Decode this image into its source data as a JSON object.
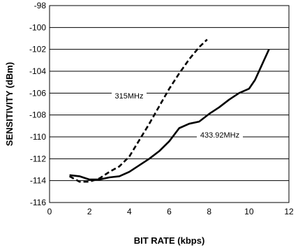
{
  "chart_data": {
    "type": "line",
    "xlabel": "BIT RATE (kbps)",
    "ylabel": "SENSITIVITY (dBm)",
    "xlim": [
      0,
      12
    ],
    "ylim": [
      -116,
      -98
    ],
    "x_ticks": [
      "0",
      "2",
      "4",
      "6",
      "8",
      "10",
      "12"
    ],
    "y_ticks": [
      "-116",
      "-114",
      "-112",
      "-110",
      "-108",
      "-106",
      "-104",
      "-102",
      "-100",
      "-98"
    ],
    "grid": "horizontal",
    "series": [
      {
        "name": "315MHz",
        "style": "dashed",
        "color": "#000000",
        "x": [
          1.0,
          1.5,
          2.0,
          2.5,
          3.0,
          3.5,
          4.0,
          4.5,
          5.0,
          5.5,
          6.0,
          6.5,
          7.0,
          7.5,
          7.9
        ],
        "y": [
          -113.6,
          -114.1,
          -114.1,
          -113.8,
          -113.2,
          -112.7,
          -111.8,
          -110.3,
          -108.8,
          -107.2,
          -105.6,
          -104.2,
          -102.9,
          -101.8,
          -101.1
        ]
      },
      {
        "name": "433.92MHz",
        "style": "solid",
        "color": "#000000",
        "x": [
          1.0,
          1.5,
          2.0,
          2.5,
          3.0,
          3.5,
          4.0,
          4.5,
          5.0,
          5.5,
          6.0,
          6.5,
          7.0,
          7.5,
          8.0,
          8.5,
          9.0,
          9.5,
          10.0,
          10.3,
          10.6,
          11.0
        ],
        "y": [
          -113.5,
          -113.6,
          -113.9,
          -113.9,
          -113.7,
          -113.6,
          -113.2,
          -112.6,
          -112.0,
          -111.3,
          -110.4,
          -109.2,
          -108.8,
          -108.6,
          -107.9,
          -107.3,
          -106.6,
          -106.0,
          -105.6,
          -104.8,
          -103.6,
          -102.0
        ]
      }
    ],
    "annotations": [
      {
        "text": "315MHz",
        "series": "315MHz"
      },
      {
        "text": "433.92MHz",
        "series": "433.92MHz"
      }
    ]
  }
}
